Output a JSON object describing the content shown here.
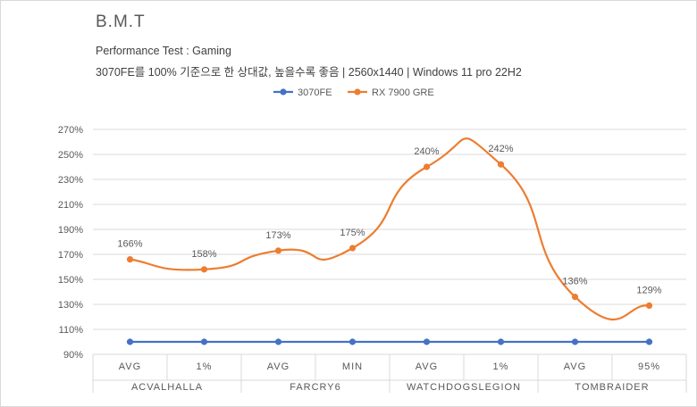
{
  "chart_data": {
    "type": "line",
    "title": "B.M.T",
    "subtitle": [
      "Performance Test : Gaming",
      "3070FE를 100% 기준으로 한 상대값, 높을수록 좋음 | 2560x1440 | Windows 11 pro 22H2"
    ],
    "categories": [
      {
        "group": "ACVALHALLA",
        "label": "AVG"
      },
      {
        "group": "ACVALHALLA",
        "label": "1%"
      },
      {
        "group": "FARCRY6",
        "label": "AVG"
      },
      {
        "group": "FARCRY6",
        "label": "MIN"
      },
      {
        "group": "WATCHDOGSLEGION",
        "label": "AVG"
      },
      {
        "group": "WATCHDOGSLEGION",
        "label": "1%"
      },
      {
        "group": "TOMBRAIDER",
        "label": "AVG"
      },
      {
        "group": "TOMBRAIDER",
        "label": "95%"
      }
    ],
    "groups": [
      "ACVALHALLA",
      "FARCRY6",
      "WATCHDOGSLEGION",
      "TOMBRAIDER"
    ],
    "series": [
      {
        "name": "3070FE",
        "color": "#4472c4",
        "values": [
          100,
          100,
          100,
          100,
          100,
          100,
          100,
          100
        ],
        "labels": []
      },
      {
        "name": "RX 7900 GRE",
        "color": "#ed7d31",
        "values": [
          166,
          158,
          173,
          175,
          240,
          242,
          136,
          129
        ],
        "labels": [
          "166%",
          "158%",
          "173%",
          "175%",
          "240%",
          "242%",
          "136%",
          "129%"
        ]
      }
    ],
    "ylim": [
      90,
      270
    ],
    "yticks": [
      "90%",
      "110%",
      "130%",
      "150%",
      "170%",
      "190%",
      "210%",
      "230%",
      "250%",
      "270%"
    ],
    "grid": true,
    "legend": "top"
  }
}
